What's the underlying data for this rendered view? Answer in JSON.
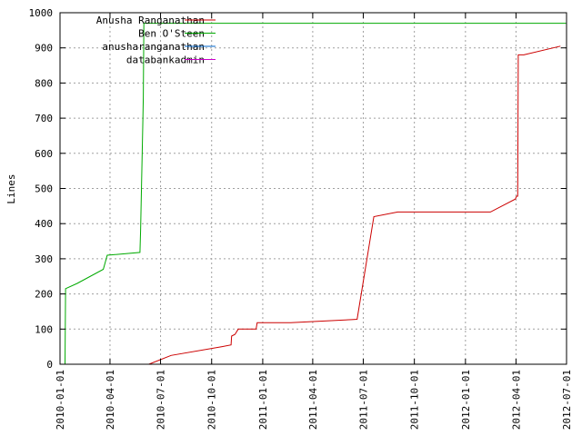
{
  "chart_data": {
    "type": "line",
    "title": "",
    "xlabel": "",
    "ylabel": "Lines",
    "x_axis": {
      "type": "date",
      "range": [
        "2010-01-01",
        "2012-07-01"
      ],
      "ticks": [
        "2010-01-01",
        "2010-04-01",
        "2010-07-01",
        "2010-10-01",
        "2011-01-01",
        "2011-04-01",
        "2011-07-01",
        "2011-10-01",
        "2012-01-01",
        "2012-04-01",
        "2012-07-01"
      ]
    },
    "y_axis": {
      "range": [
        0,
        1000
      ],
      "ticks": [
        0,
        100,
        200,
        300,
        400,
        500,
        600,
        700,
        800,
        900,
        1000
      ]
    },
    "grid": true,
    "legend_position": "top-left",
    "series": [
      {
        "name": "Anusha Ranganathan",
        "color": "#cc0000",
        "points": [
          [
            "2010-06-10",
            0
          ],
          [
            "2010-07-20",
            25
          ],
          [
            "2010-10-20",
            50
          ],
          [
            "2010-11-05",
            55
          ],
          [
            "2010-11-06",
            80
          ],
          [
            "2010-11-12",
            85
          ],
          [
            "2010-11-18",
            100
          ],
          [
            "2010-12-20",
            100
          ],
          [
            "2010-12-22",
            118
          ],
          [
            "2011-02-20",
            118
          ],
          [
            "2011-06-10",
            127
          ],
          [
            "2011-06-20",
            128
          ],
          [
            "2011-07-20",
            420
          ],
          [
            "2011-09-01",
            433
          ],
          [
            "2012-02-15",
            433
          ],
          [
            "2012-03-31",
            470
          ],
          [
            "2012-04-02",
            478
          ],
          [
            "2012-04-04",
            478
          ],
          [
            "2012-04-05",
            880
          ],
          [
            "2012-04-15",
            880
          ],
          [
            "2012-06-20",
            905
          ]
        ]
      },
      {
        "name": "Ben O'Steen",
        "color": "#00aa00",
        "points": [
          [
            "2010-01-10",
            0
          ],
          [
            "2010-01-11",
            215
          ],
          [
            "2010-02-01",
            230
          ],
          [
            "2010-03-20",
            270
          ],
          [
            "2010-03-27",
            310
          ],
          [
            "2010-04-10",
            312
          ],
          [
            "2010-05-25",
            318
          ],
          [
            "2010-05-26",
            380
          ],
          [
            "2010-05-30",
            680
          ],
          [
            "2010-05-31",
            760
          ],
          [
            "2010-06-01",
            970
          ],
          [
            "2012-06-30",
            970
          ]
        ]
      },
      {
        "name": "anusharanganathan",
        "color": "#0066cc",
        "points": []
      },
      {
        "name": "databankadmin",
        "color": "#cc00cc",
        "points": []
      }
    ]
  }
}
